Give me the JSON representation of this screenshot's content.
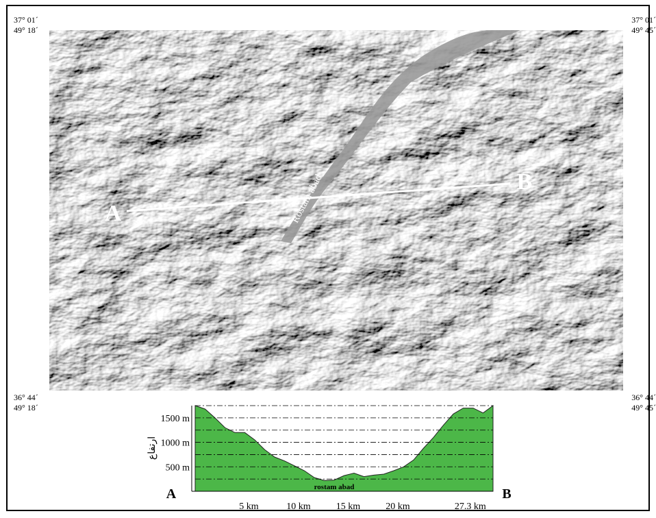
{
  "map": {
    "corners": {
      "top_left": [
        "37° 01´",
        "49° 18´"
      ],
      "top_right": [
        "37° 01´",
        "49° 45´"
      ],
      "bottom_left": [
        "36° 44´",
        "49° 18´"
      ],
      "bottom_right": [
        "36° 44´",
        "49° 45´"
      ]
    },
    "point_a": "A",
    "point_b": "B",
    "valley_label": "Rostam abad"
  },
  "profile": {
    "type": "area",
    "y_label": "ارتفاع",
    "valley_label": "rostam abad",
    "start_label": "A",
    "end_label": "B",
    "color": "#4cb748",
    "x": [
      0,
      1,
      2,
      3,
      4,
      5,
      6,
      7,
      8,
      9,
      10,
      11,
      12,
      13,
      14,
      15,
      16,
      17,
      18,
      19,
      20,
      21,
      22,
      23,
      24,
      25,
      26,
      27,
      28,
      29,
      30
    ],
    "values": [
      1750,
      1680,
      1500,
      1300,
      1200,
      1200,
      1050,
      850,
      700,
      620,
      520,
      420,
      280,
      220,
      230,
      320,
      370,
      300,
      330,
      350,
      420,
      500,
      640,
      880,
      1100,
      1350,
      1580,
      1700,
      1700,
      1600,
      1750
    ],
    "xlim": [
      0,
      30
    ],
    "ylim": [
      0,
      1750
    ],
    "xticks": [
      {
        "value": 5,
        "label": "5 km"
      },
      {
        "value": 10,
        "label": "10 km"
      },
      {
        "value": 15,
        "label": "15 km"
      },
      {
        "value": 20,
        "label": "20 km"
      },
      {
        "value": 27.3,
        "label": "27.3 km"
      }
    ],
    "yticks": [
      {
        "value": 500,
        "label": "500 m"
      },
      {
        "value": 1000,
        "label": "1000 m"
      },
      {
        "value": 1500,
        "label": "1500 m"
      }
    ],
    "grid": [
      250,
      500,
      750,
      1000,
      1250,
      1500,
      1750
    ]
  }
}
